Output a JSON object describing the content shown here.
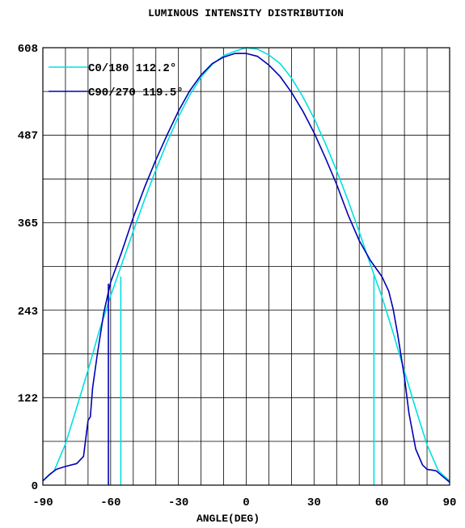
{
  "chart_data": {
    "type": "line",
    "title": "LUMINOUS INTENSITY DISTRIBUTION",
    "xlabel": "ANGLE(DEG)",
    "ylabel": "",
    "xlim": [
      -90,
      90
    ],
    "ylim": [
      0,
      608
    ],
    "x_ticks": [
      -90,
      -60,
      -30,
      0,
      30,
      60,
      90
    ],
    "y_ticks": [
      0,
      122,
      243,
      365,
      487,
      608
    ],
    "x_tick_labels": [
      "-90",
      "-60",
      "-30",
      "0",
      "30",
      "60",
      "90"
    ],
    "y_tick_labels": [
      "0",
      "122",
      "243",
      "365",
      "487",
      "608"
    ],
    "grid": true,
    "legend_position": "top-left",
    "series": [
      {
        "name": "C0/180 112.2°",
        "color": "#00e0e0",
        "points": [
          [
            -90,
            6
          ],
          [
            -85,
            20
          ],
          [
            -80,
            57
          ],
          [
            -75,
            108
          ],
          [
            -70,
            160
          ],
          [
            -65,
            215
          ],
          [
            -60,
            263
          ],
          [
            -55,
            308
          ],
          [
            -50,
            353
          ],
          [
            -45,
            397
          ],
          [
            -40,
            438
          ],
          [
            -35,
            477
          ],
          [
            -30,
            512
          ],
          [
            -25,
            542
          ],
          [
            -20,
            567
          ],
          [
            -15,
            585
          ],
          [
            -10,
            597
          ],
          [
            -5,
            603
          ],
          [
            0,
            608
          ],
          [
            5,
            606
          ],
          [
            10,
            598
          ],
          [
            15,
            586
          ],
          [
            20,
            566
          ],
          [
            25,
            540
          ],
          [
            30,
            510
          ],
          [
            35,
            475
          ],
          [
            40,
            437
          ],
          [
            45,
            396
          ],
          [
            50,
            352
          ],
          [
            55,
            306
          ],
          [
            60,
            262
          ],
          [
            65,
            212
          ],
          [
            70,
            158
          ],
          [
            75,
            106
          ],
          [
            80,
            56
          ],
          [
            85,
            20
          ],
          [
            90,
            6
          ]
        ],
        "drops": [
          {
            "x": -55.5,
            "y_from": 290,
            "y_to": 0
          },
          {
            "x": 56.5,
            "y_from": 292,
            "y_to": 0
          }
        ]
      },
      {
        "name": "C90/270 119.5°",
        "color": "#0000b4",
        "points": [
          [
            -90,
            6
          ],
          [
            -87,
            15
          ],
          [
            -84,
            22
          ],
          [
            -80,
            26
          ],
          [
            -75,
            30
          ],
          [
            -72,
            40
          ],
          [
            -70,
            90
          ],
          [
            -69,
            95
          ],
          [
            -68,
            135
          ],
          [
            -66,
            180
          ],
          [
            -63,
            240
          ],
          [
            -60,
            282
          ],
          [
            -55,
            325
          ],
          [
            -50,
            372
          ],
          [
            -45,
            414
          ],
          [
            -40,
            452
          ],
          [
            -35,
            487
          ],
          [
            -30,
            520
          ],
          [
            -25,
            548
          ],
          [
            -20,
            570
          ],
          [
            -15,
            586
          ],
          [
            -10,
            595
          ],
          [
            -5,
            600
          ],
          [
            0,
            600
          ],
          [
            5,
            596
          ],
          [
            10,
            584
          ],
          [
            15,
            568
          ],
          [
            20,
            546
          ],
          [
            25,
            520
          ],
          [
            30,
            490
          ],
          [
            35,
            455
          ],
          [
            40,
            418
          ],
          [
            45,
            376
          ],
          [
            50,
            340
          ],
          [
            55,
            312
          ],
          [
            60,
            290
          ],
          [
            63,
            270
          ],
          [
            65,
            245
          ],
          [
            67,
            210
          ],
          [
            70,
            150
          ],
          [
            72,
            100
          ],
          [
            75,
            50
          ],
          [
            78,
            28
          ],
          [
            80,
            22
          ],
          [
            84,
            20
          ],
          [
            87,
            12
          ],
          [
            90,
            4
          ]
        ],
        "drops": [
          {
            "x": -61,
            "y_from": 280,
            "y_to": 0
          }
        ]
      }
    ]
  }
}
